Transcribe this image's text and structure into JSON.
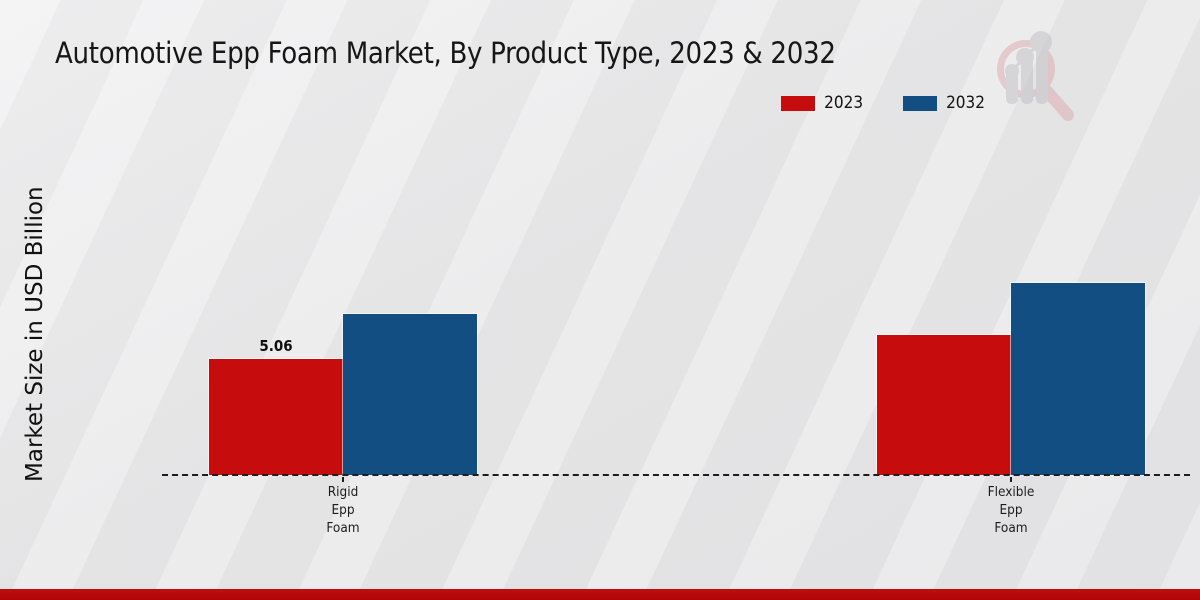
{
  "title": "Automotive Epp Foam Market, By Product Type, 2023 & 2032",
  "y_axis_label": "Market Size in USD Billion",
  "legend": {
    "items": [
      {
        "label": "2023",
        "color": "#c60c0c"
      },
      {
        "label": "2032",
        "color": "#134e83"
      }
    ]
  },
  "chart_data": {
    "type": "bar",
    "title": "Automotive Epp Foam Market, By Product Type, 2023 & 2032",
    "ylabel": "Market Size in USD Billion",
    "xlabel": "",
    "categories": [
      "Rigid Epp Foam",
      "Flexible Epp Foam"
    ],
    "category_label_lines": [
      [
        "Rigid",
        "Epp",
        "Foam"
      ],
      [
        "Flexible",
        "Epp",
        "Foam"
      ]
    ],
    "series": [
      {
        "name": "2023",
        "color": "#c60c0c",
        "values": [
          5.06,
          6.11
        ],
        "point_labels": [
          "5.06",
          ""
        ]
      },
      {
        "name": "2032",
        "color": "#134e83",
        "values": [
          7.02,
          8.38
        ],
        "point_labels": [
          "",
          ""
        ]
      }
    ],
    "ylim": [
      0,
      9
    ],
    "grid": false,
    "legend_position": "top-right",
    "baseline_style": "dashed"
  },
  "footer": {
    "accent_color": "#b60909"
  },
  "logo": {
    "name": "market-research-magnifier-logo",
    "ring_color": "#dca8ad",
    "bars_color": "#bfbfc4"
  }
}
